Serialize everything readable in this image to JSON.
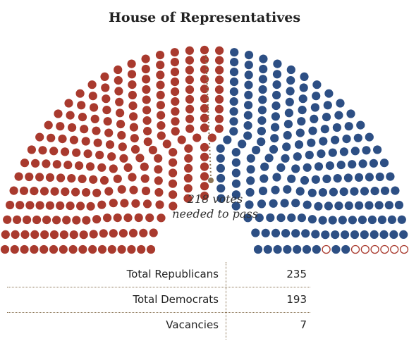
{
  "title": "House of Representatives",
  "annotation": {
    "line1": "218 votes",
    "line2": "needed to pass"
  },
  "table": {
    "rows": [
      {
        "label": "Total Republicans",
        "value": "235"
      },
      {
        "label": "Total Democrats",
        "value": "193"
      },
      {
        "label": "Vacancies",
        "value": "7"
      }
    ]
  },
  "chart_data": {
    "type": "parliament",
    "title": "House of Representatives",
    "total_seats": 435,
    "majority_threshold": 218,
    "groups": [
      {
        "name": "Republicans",
        "seats": 235,
        "color": "#a93a2e"
      },
      {
        "name": "Democrats",
        "seats": 193,
        "color": "#2d4f84"
      },
      {
        "name": "Vacancies",
        "seats": 7,
        "color": "#ffffff",
        "stroke": "#a93a2e"
      }
    ],
    "annotation": "218 votes needed to pass",
    "threshold_line_color": "#8a7455"
  }
}
